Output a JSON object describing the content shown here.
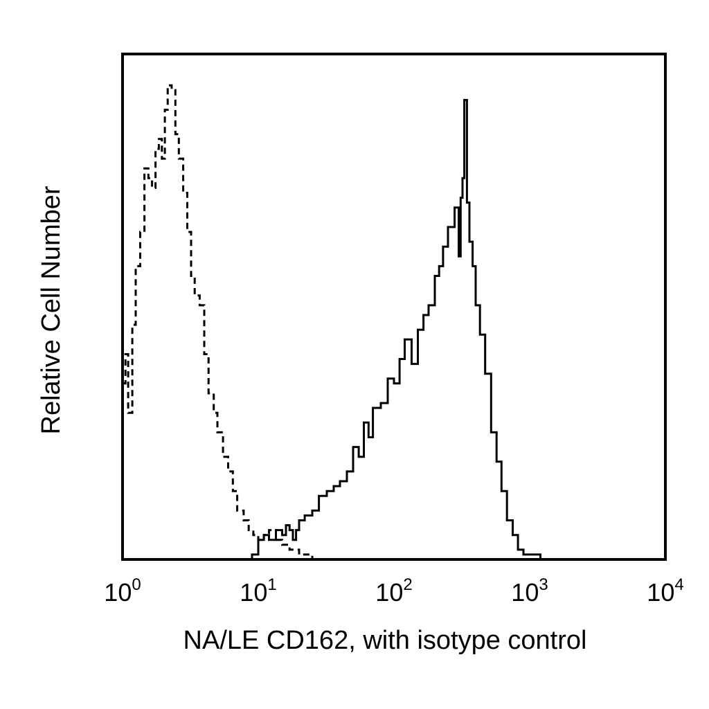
{
  "chart_data": {
    "type": "line",
    "title": "",
    "xlabel": "NA/LE CD162, with isotype control",
    "ylabel": "Relative Cell Number",
    "x_scale": "log",
    "xlim": [
      1,
      10000
    ],
    "ylim": [
      0,
      1
    ],
    "grid": false,
    "legend": "none",
    "x_ticks": [
      {
        "base": "10",
        "exp": "0",
        "value": 1
      },
      {
        "base": "10",
        "exp": "1",
        "value": 10
      },
      {
        "base": "10",
        "exp": "2",
        "value": 100
      },
      {
        "base": "10",
        "exp": "3",
        "value": 1000
      },
      {
        "base": "10",
        "exp": "4",
        "value": 10000
      }
    ],
    "series": [
      {
        "style": "dashed",
        "color": "#000000",
        "x": [
          1.0,
          1.05,
          1.1,
          1.18,
          1.25,
          1.35,
          1.45,
          1.55,
          1.65,
          1.75,
          1.85,
          1.95,
          2.05,
          2.15,
          2.3,
          2.45,
          2.6,
          2.8,
          3.0,
          3.2,
          3.4,
          3.7,
          4.0,
          4.3,
          4.7,
          5.0,
          5.5,
          6.0,
          6.5,
          7.0,
          7.8,
          8.5,
          9.2,
          10.0,
          11.0,
          12.0,
          13.5,
          15.0,
          17.0,
          20.0,
          25.0,
          30.0,
          40.0,
          55.0,
          80.0,
          120.0,
          200.0,
          300.0,
          500.0,
          800.0,
          1200.0,
          1500.0
        ],
        "values": [
          0.36,
          0.42,
          0.3,
          0.48,
          0.6,
          0.67,
          0.8,
          0.78,
          0.76,
          0.84,
          0.86,
          0.82,
          0.92,
          0.97,
          0.96,
          0.87,
          0.82,
          0.75,
          0.67,
          0.58,
          0.54,
          0.52,
          0.42,
          0.34,
          0.3,
          0.26,
          0.21,
          0.18,
          0.14,
          0.1,
          0.08,
          0.06,
          0.05,
          0.04,
          0.05,
          0.06,
          0.04,
          0.03,
          0.02,
          0.01,
          0.0,
          0.0,
          0.0,
          0.0,
          0.0,
          0.0,
          0.0,
          0.0,
          0.0,
          0.0,
          0.0,
          0.0
        ]
      },
      {
        "style": "solid",
        "color": "#000000",
        "x": [
          5.0,
          7.0,
          9.0,
          10.0,
          11.0,
          12.0,
          13.5,
          15.0,
          16.0,
          17.0,
          18.0,
          19.0,
          20.0,
          22.0,
          25.0,
          28.0,
          32.0,
          36.0,
          40.0,
          45.0,
          50.0,
          55.0,
          60.0,
          65.0,
          70.0,
          80.0,
          90.0,
          100.0,
          110.0,
          120.0,
          135.0,
          150.0,
          165.0,
          180.0,
          200.0,
          215.0,
          230.0,
          250.0,
          265.0,
          280.0,
          300.0,
          310.0,
          320.0,
          330.0,
          345.0,
          360.0,
          380.0,
          400.0,
          430.0,
          470.0,
          520.0,
          570.0,
          620.0,
          680.0,
          750.0,
          820.0,
          900.0,
          1000.0,
          1100.0,
          1200.0,
          1300.0,
          1500.0
        ],
        "values": [
          0.0,
          0.0,
          0.01,
          0.04,
          0.05,
          0.04,
          0.06,
          0.05,
          0.07,
          0.06,
          0.04,
          0.06,
          0.08,
          0.09,
          0.1,
          0.13,
          0.14,
          0.15,
          0.16,
          0.18,
          0.23,
          0.21,
          0.28,
          0.25,
          0.31,
          0.32,
          0.37,
          0.36,
          0.41,
          0.45,
          0.4,
          0.47,
          0.5,
          0.52,
          0.58,
          0.6,
          0.64,
          0.68,
          0.68,
          0.72,
          0.62,
          0.74,
          0.78,
          0.94,
          0.73,
          0.65,
          0.6,
          0.52,
          0.46,
          0.38,
          0.26,
          0.2,
          0.14,
          0.08,
          0.05,
          0.02,
          0.01,
          0.01,
          0.01,
          0.0,
          0.0,
          0.0
        ]
      }
    ]
  }
}
